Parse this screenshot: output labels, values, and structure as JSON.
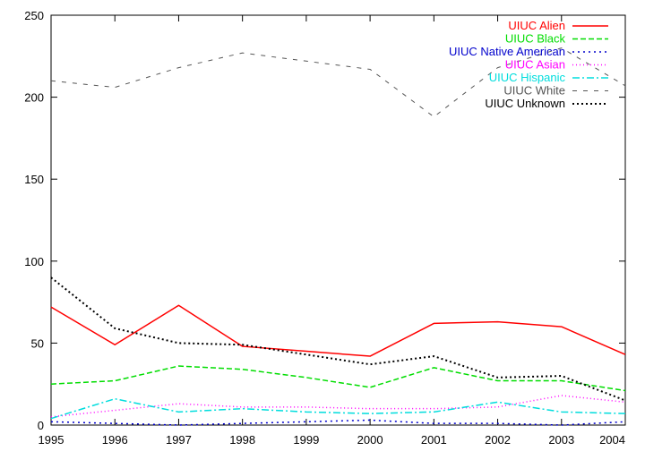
{
  "chart_data": {
    "type": "line",
    "title": "",
    "xlabel": "",
    "ylabel": "",
    "x": [
      1995,
      1996,
      1997,
      1998,
      1999,
      2000,
      2001,
      2002,
      2003,
      2004
    ],
    "xlim": [
      1995,
      2004
    ],
    "ylim": [
      0,
      250
    ],
    "xticks": [
      "1995",
      "1996",
      "1997",
      "1998",
      "1999",
      "2000",
      "2001",
      "2002",
      "2003",
      "2004"
    ],
    "yticks": [
      "0",
      "50",
      "100",
      "150",
      "200",
      "250"
    ],
    "grid": false,
    "legend_position": "top-right",
    "series": [
      {
        "name": "UIUC Alien",
        "color": "#ff0000",
        "dash": "solid",
        "values": [
          72,
          49,
          73,
          48,
          45,
          42,
          62,
          63,
          60,
          43
        ]
      },
      {
        "name": "UIUC Black",
        "color": "#00dd00",
        "dash": "dashed",
        "values": [
          25,
          27,
          36,
          34,
          29,
          23,
          35,
          27,
          27,
          21
        ]
      },
      {
        "name": "UIUC Native American",
        "color": "#0000cc",
        "dash": "dotted",
        "values": [
          2,
          1,
          0,
          1,
          2,
          3,
          1,
          1,
          0,
          2
        ]
      },
      {
        "name": "UIUC Asian",
        "color": "#ff00ff",
        "dash": "fine-dotted",
        "values": [
          5,
          9,
          13,
          11,
          11,
          10,
          10,
          11,
          18,
          14
        ]
      },
      {
        "name": "UIUC Hispanic",
        "color": "#00dddd",
        "dash": "dash-dot",
        "values": [
          4,
          16,
          8,
          10,
          8,
          7,
          8,
          14,
          8,
          7
        ]
      },
      {
        "name": "UIUC White",
        "color": "#555555",
        "dash": "dashed-fine",
        "values": [
          210,
          206,
          218,
          227,
          222,
          217,
          188,
          218,
          230,
          207
        ]
      },
      {
        "name": "UIUC Unknown",
        "color": "#000000",
        "dash": "dotted-heavy",
        "values": [
          90,
          59,
          50,
          49,
          43,
          37,
          42,
          29,
          30,
          15
        ]
      }
    ]
  }
}
